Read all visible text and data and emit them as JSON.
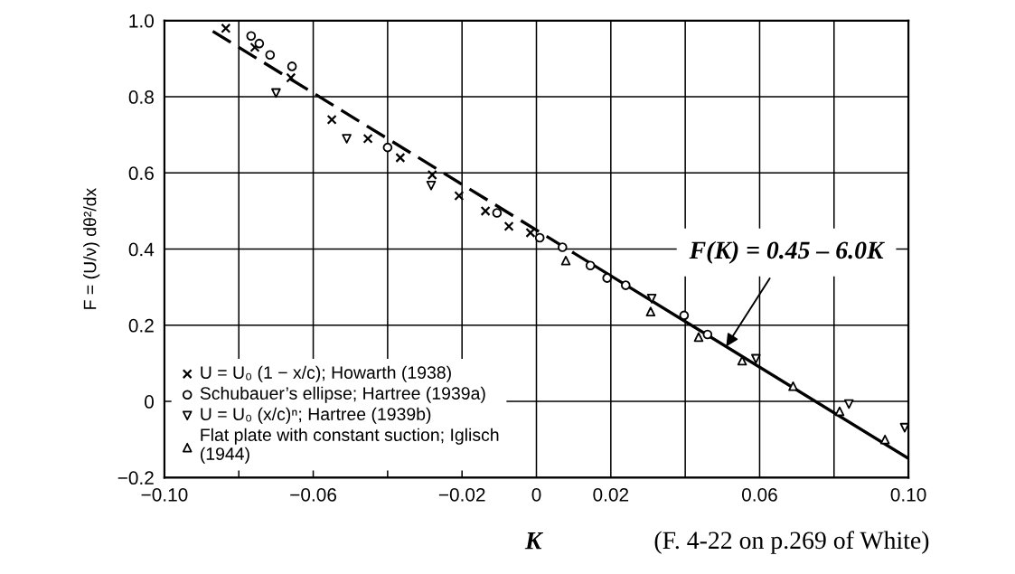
{
  "chart_data": {
    "type": "scatter",
    "xlabel": "K",
    "ylabel": "F = (U/ν) dθ²/dx",
    "xlim": [
      -0.1,
      0.1
    ],
    "ylim": [
      -0.2,
      1.0
    ],
    "xticks": [
      {
        "value": -0.1,
        "label": "−0.10"
      },
      {
        "value": -0.08,
        "label": null
      },
      {
        "value": -0.06,
        "label": "−0.06"
      },
      {
        "value": -0.04,
        "label": null
      },
      {
        "value": -0.02,
        "label": "−0.02"
      },
      {
        "value": 0,
        "label": "0"
      },
      0.02,
      {
        "value": 0.04,
        "label": null
      },
      0.06,
      {
        "value": 0.08,
        "label": null
      },
      {
        "value": 0.1,
        "label": "0.10"
      }
    ],
    "yticks": [
      {
        "value": -0.2,
        "label": "−0.2"
      },
      {
        "value": 0,
        "label": "0"
      },
      0.2,
      0.4,
      0.6,
      0.8,
      {
        "value": 1.0,
        "label": "1.0"
      }
    ],
    "grid": true,
    "legend": "bottom left",
    "series": [
      {
        "name": "U = U₀ (1 − x/c); Howarth (1938)",
        "color": "#000000",
        "marker": "cross",
        "x": [
          -0.0835,
          -0.0757,
          -0.066,
          -0.055,
          -0.0453,
          -0.0366,
          -0.028,
          -0.0208,
          -0.0137,
          -0.0074,
          -0.0016
        ],
        "values": [
          0.98,
          0.93,
          0.85,
          0.74,
          0.69,
          0.64,
          0.595,
          0.54,
          0.5,
          0.46,
          0.443
        ]
      },
      {
        "name": "Schubauer’s ellipse; Hartree (1939a)",
        "color": "#000000",
        "marker": "circle",
        "x": [
          -0.0767,
          -0.0745,
          -0.0716,
          -0.0657,
          -0.04,
          -0.0106,
          0.0009,
          0.007,
          0.0145,
          0.019,
          0.024,
          0.0397,
          0.046
        ],
        "values": [
          0.96,
          0.94,
          0.91,
          0.88,
          0.667,
          0.495,
          0.43,
          0.405,
          0.357,
          0.324,
          0.305,
          0.226,
          0.176
        ]
      },
      {
        "name": "U = U₀ (x/c)ⁿ; Hartree (1939b)",
        "color": "#000000",
        "marker": "triangle_down",
        "x": [
          -0.07,
          -0.051,
          -0.0283,
          0.031,
          0.059,
          0.084,
          0.099
        ],
        "values": [
          0.81,
          0.69,
          0.567,
          0.27,
          0.112,
          -0.007,
          -0.069
        ]
      },
      {
        "name": "Flat plate with constant suction; Iglisch\n(1944)",
        "color": "#000000",
        "marker": "triangle",
        "x": [
          0.0079,
          0.0307,
          0.0436,
          0.0553,
          0.069,
          0.0815,
          0.0937
        ],
        "values": [
          0.37,
          0.236,
          0.169,
          0.107,
          0.04,
          -0.026,
          -0.1
        ]
      },
      {
        "type": "line",
        "color": "#000000",
        "marker": "none",
        "line_style": "dashed",
        "x": [
          -0.087,
          0.01
        ],
        "values": [
          0.972,
          0.39
        ]
      },
      {
        "type": "line",
        "color": "#000000",
        "marker": "none",
        "line_style": "solid",
        "x": [
          0.01,
          0.1
        ],
        "values": [
          0.39,
          -0.15
        ]
      }
    ],
    "annotations": [
      {
        "text": "F(K) = 0.45 – 6.0K",
        "x": 0.051,
        "y": 0.144
      },
      "(F. 4-22 on p.269 of White)"
    ]
  }
}
